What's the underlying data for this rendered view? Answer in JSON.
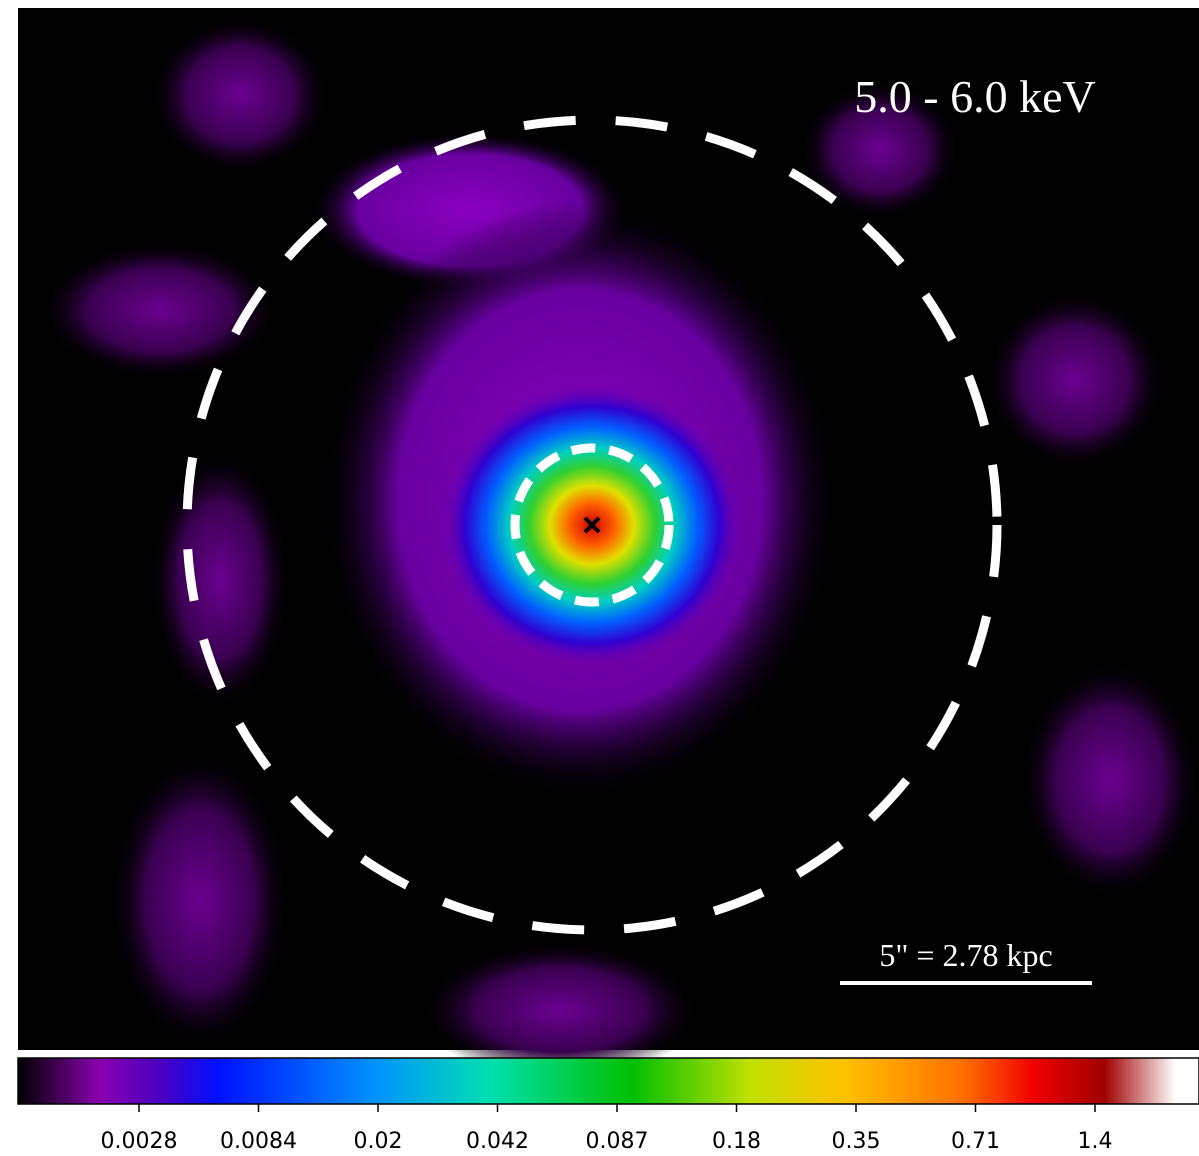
{
  "image": {
    "label": "5.0 - 6.0 keV",
    "scale_bar": "5\" = 2.78 kpc"
  },
  "colorbar": {
    "ticks": [
      0.0028,
      0.0084,
      0.02,
      0.042,
      0.087,
      0.18,
      0.35,
      0.71,
      1.4
    ]
  }
}
